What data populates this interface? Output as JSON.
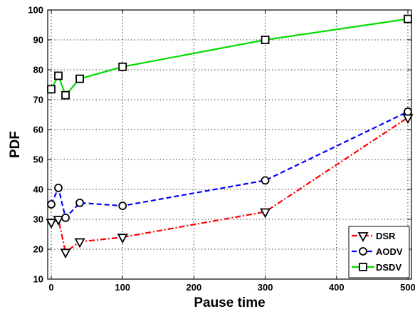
{
  "chart_data": {
    "type": "line",
    "xlabel": "Pause time",
    "ylabel": "PDF",
    "xlim": [
      -5,
      505
    ],
    "ylim": [
      10,
      100
    ],
    "xticks": [
      0,
      100,
      200,
      300,
      400,
      500
    ],
    "yticks": [
      10,
      20,
      30,
      40,
      50,
      60,
      70,
      80,
      90,
      100
    ],
    "grid": true,
    "legend_position": "bottom-right",
    "series": [
      {
        "name": "DSR",
        "color": "#ff0000",
        "line_style": "dash-dot",
        "marker": "triangle-down",
        "x": [
          0,
          10,
          20,
          40,
          100,
          300,
          500
        ],
        "y": [
          29,
          30,
          19,
          22.5,
          24,
          32.5,
          64
        ]
      },
      {
        "name": "AODV",
        "color": "#0000ff",
        "line_style": "dashed",
        "marker": "circle",
        "x": [
          0,
          10,
          20,
          40,
          100,
          300,
          500
        ],
        "y": [
          35,
          40.5,
          30.5,
          35.5,
          34.5,
          43,
          66
        ]
      },
      {
        "name": "DSDV",
        "color": "#00dd00",
        "line_style": "solid",
        "marker": "square",
        "x": [
          0,
          10,
          20,
          40,
          100,
          300,
          500
        ],
        "y": [
          73.5,
          78,
          71.5,
          77,
          81,
          90,
          97
        ]
      }
    ]
  }
}
